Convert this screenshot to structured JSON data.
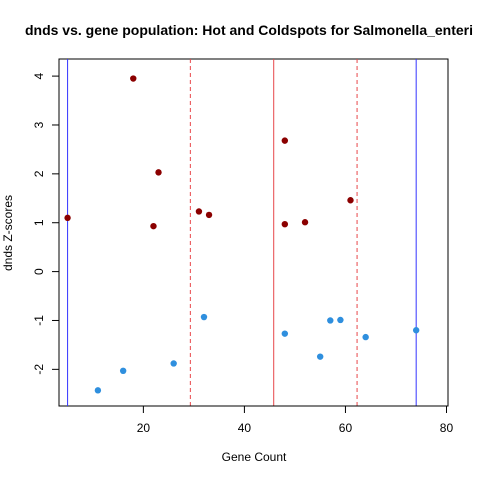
{
  "chart_data": {
    "type": "scatter",
    "title": "dnds vs. gene population: Hot and Coldspots for Salmonella_enteri",
    "xlabel": "Gene Count",
    "ylabel": "dnds Z-scores",
    "xlim": [
      3.3,
      80.3
    ],
    "ylim": [
      -2.75,
      4.35
    ],
    "xticks": [
      20,
      40,
      60,
      80
    ],
    "yticks": [
      -2,
      -1,
      0,
      1,
      2,
      3,
      4
    ],
    "series": [
      {
        "key": "hot",
        "color": "#8b0000",
        "points": [
          [
            5,
            1.1
          ],
          [
            18,
            3.95
          ],
          [
            23,
            2.03
          ],
          [
            22,
            0.93
          ],
          [
            31,
            1.23
          ],
          [
            33,
            1.16
          ],
          [
            48,
            2.68
          ],
          [
            48,
            0.97
          ],
          [
            52,
            1.01
          ],
          [
            61,
            1.46
          ]
        ]
      },
      {
        "key": "cold",
        "color": "#2f8fde",
        "points": [
          [
            11,
            -2.43
          ],
          [
            16,
            -2.03
          ],
          [
            26,
            -1.88
          ],
          [
            32,
            -0.93
          ],
          [
            48,
            -1.27
          ],
          [
            55,
            -1.74
          ],
          [
            57,
            -1.0
          ],
          [
            59,
            -0.99
          ],
          [
            64,
            -1.34
          ],
          [
            74,
            -1.2
          ]
        ]
      }
    ],
    "vlines": [
      {
        "x": 5,
        "color": "#3333ff",
        "style": "solid"
      },
      {
        "x": 29.3,
        "color": "#e8474a",
        "style": "dashed"
      },
      {
        "x": 45.8,
        "color": "#e8474a",
        "style": "solid"
      },
      {
        "x": 62.3,
        "color": "#e8474a",
        "style": "dashed"
      },
      {
        "x": 74,
        "color": "#3333ff",
        "style": "solid"
      }
    ],
    "grid": false,
    "legend": "none"
  }
}
